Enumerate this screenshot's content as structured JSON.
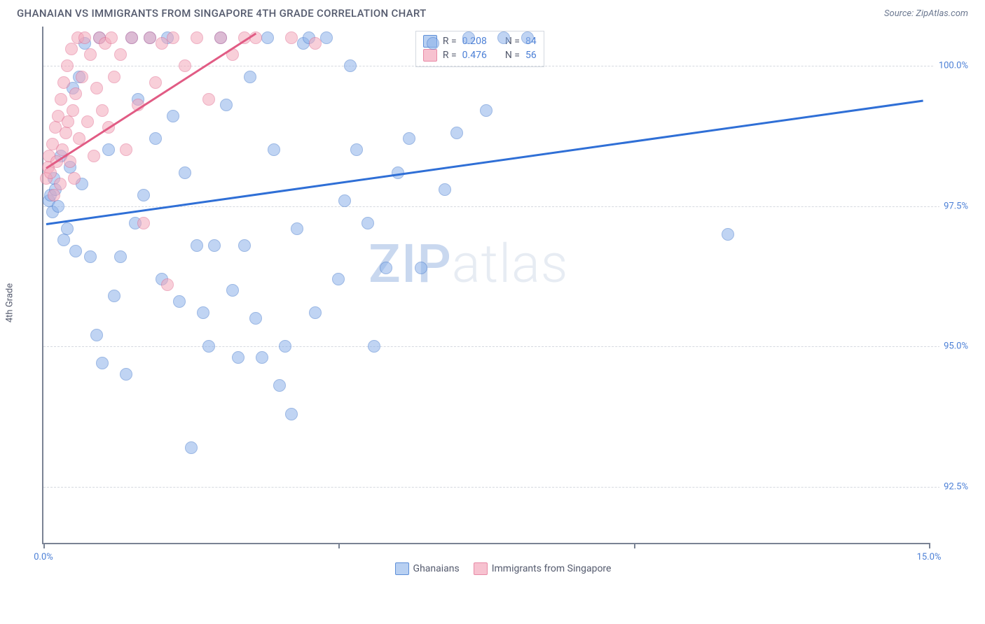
{
  "title": "GHANAIAN VS IMMIGRANTS FROM SINGAPORE 4TH GRADE CORRELATION CHART",
  "source_label": "Source: ZipAtlas.com",
  "y_axis_label": "4th Grade",
  "watermark": {
    "a": "ZIP",
    "b": "atlas"
  },
  "chart": {
    "type": "scatter",
    "xlim": [
      0.0,
      15.0
    ],
    "ylim": [
      91.5,
      100.7
    ],
    "x_ticks": [
      0.0,
      5.0,
      10.0,
      15.0
    ],
    "x_tick_labels": [
      "0.0%",
      "",
      "",
      "15.0%"
    ],
    "y_ticks": [
      92.5,
      95.0,
      97.5,
      100.0
    ],
    "y_tick_labels": [
      "92.5%",
      "95.0%",
      "97.5%",
      "100.0%"
    ],
    "grid_color": "#d5d9df",
    "axis_color": "#7a8394",
    "background_color": "#ffffff",
    "series": [
      {
        "key": "ghanaians",
        "label": "Ghanaians",
        "marker_fill": "#8db2ea",
        "marker_stroke": "#4a7ecf",
        "trend_color": "#2f6fd6",
        "R": "0.208",
        "N": "84",
        "trend": {
          "x1": 0.05,
          "y1": 97.2,
          "x2": 14.9,
          "y2": 99.4
        },
        "points": [
          [
            0.1,
            97.6
          ],
          [
            0.12,
            97.7
          ],
          [
            0.15,
            97.4
          ],
          [
            0.18,
            98.0
          ],
          [
            0.2,
            97.8
          ],
          [
            0.25,
            97.5
          ],
          [
            0.3,
            98.4
          ],
          [
            0.35,
            96.9
          ],
          [
            0.4,
            97.1
          ],
          [
            0.45,
            98.2
          ],
          [
            0.5,
            99.6
          ],
          [
            0.55,
            96.7
          ],
          [
            0.6,
            99.8
          ],
          [
            0.65,
            97.9
          ],
          [
            0.7,
            100.4
          ],
          [
            0.8,
            96.6
          ],
          [
            0.9,
            95.2
          ],
          [
            0.95,
            100.5
          ],
          [
            1.0,
            94.7
          ],
          [
            1.1,
            98.5
          ],
          [
            1.2,
            95.9
          ],
          [
            1.3,
            96.6
          ],
          [
            1.4,
            94.5
          ],
          [
            1.5,
            100.5
          ],
          [
            1.55,
            97.2
          ],
          [
            1.6,
            99.4
          ],
          [
            1.7,
            97.7
          ],
          [
            1.8,
            100.5
          ],
          [
            1.9,
            98.7
          ],
          [
            2.0,
            96.2
          ],
          [
            2.1,
            100.5
          ],
          [
            2.2,
            99.1
          ],
          [
            2.3,
            95.8
          ],
          [
            2.4,
            98.1
          ],
          [
            2.5,
            93.2
          ],
          [
            2.6,
            96.8
          ],
          [
            2.7,
            95.6
          ],
          [
            2.8,
            95.0
          ],
          [
            2.9,
            96.8
          ],
          [
            3.0,
            100.5
          ],
          [
            3.1,
            99.3
          ],
          [
            3.2,
            96.0
          ],
          [
            3.3,
            94.8
          ],
          [
            3.4,
            96.8
          ],
          [
            3.5,
            99.8
          ],
          [
            3.6,
            95.5
          ],
          [
            3.7,
            94.8
          ],
          [
            3.8,
            100.5
          ],
          [
            3.9,
            98.5
          ],
          [
            4.0,
            94.3
          ],
          [
            4.1,
            95.0
          ],
          [
            4.2,
            93.8
          ],
          [
            4.3,
            97.1
          ],
          [
            4.4,
            100.4
          ],
          [
            4.5,
            100.5
          ],
          [
            4.6,
            95.6
          ],
          [
            4.8,
            100.5
          ],
          [
            5.0,
            96.2
          ],
          [
            5.1,
            97.6
          ],
          [
            5.2,
            100.0
          ],
          [
            5.3,
            98.5
          ],
          [
            5.5,
            97.2
          ],
          [
            5.6,
            95.0
          ],
          [
            5.8,
            96.4
          ],
          [
            6.0,
            98.1
          ],
          [
            6.2,
            98.7
          ],
          [
            6.4,
            96.4
          ],
          [
            6.6,
            100.4
          ],
          [
            6.8,
            97.8
          ],
          [
            7.0,
            98.8
          ],
          [
            7.2,
            100.5
          ],
          [
            7.5,
            99.2
          ],
          [
            7.8,
            100.5
          ],
          [
            8.2,
            100.5
          ],
          [
            11.6,
            97.0
          ]
        ]
      },
      {
        "key": "singapore",
        "label": "Immigrants from Singapore",
        "marker_fill": "#f4a8bb",
        "marker_stroke": "#e27093",
        "trend_color": "#e15b84",
        "R": "0.476",
        "N": "56",
        "trend": {
          "x1": 0.05,
          "y1": 98.2,
          "x2": 3.6,
          "y2": 100.6
        },
        "points": [
          [
            0.05,
            98.0
          ],
          [
            0.08,
            98.2
          ],
          [
            0.1,
            98.4
          ],
          [
            0.12,
            98.1
          ],
          [
            0.15,
            98.6
          ],
          [
            0.18,
            97.7
          ],
          [
            0.2,
            98.9
          ],
          [
            0.22,
            98.3
          ],
          [
            0.25,
            99.1
          ],
          [
            0.28,
            97.9
          ],
          [
            0.3,
            99.4
          ],
          [
            0.32,
            98.5
          ],
          [
            0.35,
            99.7
          ],
          [
            0.38,
            98.8
          ],
          [
            0.4,
            100.0
          ],
          [
            0.42,
            99.0
          ],
          [
            0.45,
            98.3
          ],
          [
            0.48,
            100.3
          ],
          [
            0.5,
            99.2
          ],
          [
            0.52,
            98.0
          ],
          [
            0.55,
            99.5
          ],
          [
            0.58,
            100.5
          ],
          [
            0.6,
            98.7
          ],
          [
            0.65,
            99.8
          ],
          [
            0.7,
            100.5
          ],
          [
            0.75,
            99.0
          ],
          [
            0.8,
            100.2
          ],
          [
            0.85,
            98.4
          ],
          [
            0.9,
            99.6
          ],
          [
            0.95,
            100.5
          ],
          [
            1.0,
            99.2
          ],
          [
            1.05,
            100.4
          ],
          [
            1.1,
            98.9
          ],
          [
            1.15,
            100.5
          ],
          [
            1.2,
            99.8
          ],
          [
            1.3,
            100.2
          ],
          [
            1.4,
            98.5
          ],
          [
            1.5,
            100.5
          ],
          [
            1.6,
            99.3
          ],
          [
            1.7,
            97.2
          ],
          [
            1.8,
            100.5
          ],
          [
            1.9,
            99.7
          ],
          [
            2.0,
            100.4
          ],
          [
            2.1,
            96.1
          ],
          [
            2.2,
            100.5
          ],
          [
            2.4,
            100.0
          ],
          [
            2.6,
            100.5
          ],
          [
            2.8,
            99.4
          ],
          [
            3.0,
            100.5
          ],
          [
            3.2,
            100.2
          ],
          [
            3.4,
            100.5
          ],
          [
            3.6,
            100.5
          ],
          [
            4.2,
            100.5
          ],
          [
            4.6,
            100.4
          ]
        ]
      }
    ]
  },
  "legend_box": {
    "rows": [
      {
        "swatch": "a",
        "r_label": "R = ",
        "r_val": "0.208",
        "n_label": "N = ",
        "n_val": "84"
      },
      {
        "swatch": "b",
        "r_label": "R = ",
        "r_val": "0.476",
        "n_label": "N = ",
        "n_val": "56"
      }
    ]
  }
}
